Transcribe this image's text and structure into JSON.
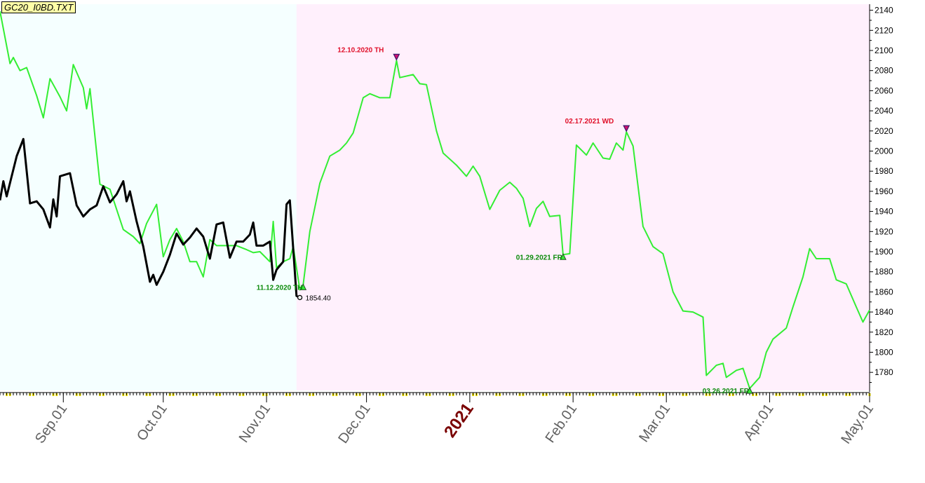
{
  "file_label": "GC20_I0BD.TXT",
  "colors": {
    "history_bg": "#f5ffff",
    "forecast_bg": "#fff0fc",
    "green_line": "#33ee33",
    "black_line": "#000000",
    "top_label": "#e0102a",
    "bottom_label": "#0a8a0a",
    "year_label": "#7a0000",
    "month_label": "#606060",
    "tick_yellow": "#ffee00"
  },
  "chart_data": {
    "type": "line",
    "x_axis": {
      "month_labels": [
        "Sep.01",
        "Oct.01",
        "Nov.01",
        "Dec.01",
        "2021",
        "Feb.01",
        "Mar.01",
        "Apr.01",
        "May.01"
      ],
      "month_dates": [
        "2020-09-01",
        "2020-10-01",
        "2020-11-01",
        "2020-12-01",
        "2021-01-01",
        "2021-02-01",
        "2021-03-01",
        "2021-04-01",
        "2021-05-01"
      ],
      "xlim": [
        "2020-08-13",
        "2021-05-01"
      ]
    },
    "y_axis": {
      "ticks": [
        2140,
        2120,
        2100,
        2080,
        2060,
        2040,
        2020,
        2000,
        1980,
        1960,
        1940,
        1920,
        1900,
        1880,
        1860,
        1840,
        1820,
        1800,
        1780
      ],
      "ylim": [
        1762,
        2146
      ],
      "position": "right"
    },
    "forecast_start": "2020-11-10",
    "series": [
      {
        "color": "green",
        "points": [
          [
            "2020-08-13",
            2139
          ],
          [
            "2020-08-16",
            2087
          ],
          [
            "2020-08-17",
            2093
          ],
          [
            "2020-08-19",
            2080
          ],
          [
            "2020-08-21",
            2083
          ],
          [
            "2020-08-24",
            2055
          ],
          [
            "2020-08-26",
            2033
          ],
          [
            "2020-08-28",
            2072
          ],
          [
            "2020-08-31",
            2054
          ],
          [
            "2020-09-02",
            2040
          ],
          [
            "2020-09-04",
            2086
          ],
          [
            "2020-09-07",
            2063
          ],
          [
            "2020-09-08",
            2042
          ],
          [
            "2020-09-09",
            2062
          ],
          [
            "2020-09-12",
            1967
          ],
          [
            "2020-09-15",
            1962
          ],
          [
            "2020-09-19",
            1922
          ],
          [
            "2020-09-22",
            1915
          ],
          [
            "2020-09-24",
            1908
          ],
          [
            "2020-09-26",
            1928
          ],
          [
            "2020-09-29",
            1947
          ],
          [
            "2020-10-01",
            1895
          ],
          [
            "2020-10-03",
            1912
          ],
          [
            "2020-10-05",
            1923
          ],
          [
            "2020-10-07",
            1910
          ],
          [
            "2020-10-09",
            1890
          ],
          [
            "2020-10-11",
            1890
          ],
          [
            "2020-10-13",
            1875
          ],
          [
            "2020-10-15",
            1912
          ],
          [
            "2020-10-17",
            1906
          ],
          [
            "2020-10-20",
            1906
          ],
          [
            "2020-10-23",
            1906
          ],
          [
            "2020-10-26",
            1902
          ],
          [
            "2020-10-28",
            1899
          ],
          [
            "2020-10-30",
            1900
          ],
          [
            "2020-11-02",
            1890
          ],
          [
            "2020-11-03",
            1930
          ],
          [
            "2020-11-04",
            1884
          ],
          [
            "2020-11-06",
            1890
          ],
          [
            "2020-11-08",
            1893
          ],
          [
            "2020-11-09",
            1905
          ],
          [
            "2020-11-11",
            1862
          ],
          [
            "2020-11-12",
            1867
          ],
          [
            "2020-11-14",
            1920
          ],
          [
            "2020-11-17",
            1968
          ],
          [
            "2020-11-20",
            1995
          ],
          [
            "2020-11-23",
            2001
          ],
          [
            "2020-11-25",
            2008
          ],
          [
            "2020-11-27",
            2018
          ],
          [
            "2020-11-30",
            2053
          ],
          [
            "2020-12-02",
            2057
          ],
          [
            "2020-12-05",
            2053
          ],
          [
            "2020-12-08",
            2053
          ],
          [
            "2020-12-10",
            2090
          ],
          [
            "2020-12-11",
            2073
          ],
          [
            "2020-12-15",
            2076
          ],
          [
            "2020-12-17",
            2067
          ],
          [
            "2020-12-19",
            2066
          ],
          [
            "2020-12-22",
            2020
          ],
          [
            "2020-12-24",
            1998
          ],
          [
            "2020-12-28",
            1986
          ],
          [
            "2020-12-31",
            1975
          ],
          [
            "2021-01-02",
            1985
          ],
          [
            "2021-01-04",
            1975
          ],
          [
            "2021-01-07",
            1942
          ],
          [
            "2021-01-10",
            1961
          ],
          [
            "2021-01-13",
            1969
          ],
          [
            "2021-01-15",
            1963
          ],
          [
            "2021-01-17",
            1953
          ],
          [
            "2021-01-19",
            1925
          ],
          [
            "2021-01-21",
            1943
          ],
          [
            "2021-01-23",
            1950
          ],
          [
            "2021-01-25",
            1935
          ],
          [
            "2021-01-28",
            1936
          ],
          [
            "2021-01-29",
            1897
          ],
          [
            "2021-01-31",
            1898
          ],
          [
            "2021-02-02",
            2006
          ],
          [
            "2021-02-05",
            1996
          ],
          [
            "2021-02-07",
            2008
          ],
          [
            "2021-02-10",
            1993
          ],
          [
            "2021-02-12",
            1992
          ],
          [
            "2021-02-14",
            2008
          ],
          [
            "2021-02-16",
            2001
          ],
          [
            "2021-02-17",
            2019
          ],
          [
            "2021-02-19",
            2005
          ],
          [
            "2021-02-22",
            1925
          ],
          [
            "2021-02-25",
            1905
          ],
          [
            "2021-02-28",
            1898
          ],
          [
            "2021-03-03",
            1860
          ],
          [
            "2021-03-06",
            1841
          ],
          [
            "2021-03-09",
            1840
          ],
          [
            "2021-03-12",
            1835
          ],
          [
            "2021-03-13",
            1777
          ],
          [
            "2021-03-16",
            1787
          ],
          [
            "2021-03-18",
            1789
          ],
          [
            "2021-03-19",
            1775
          ],
          [
            "2021-03-22",
            1782
          ],
          [
            "2021-03-24",
            1784
          ],
          [
            "2021-03-26",
            1764
          ],
          [
            "2021-03-29",
            1775
          ],
          [
            "2021-03-31",
            1800
          ],
          [
            "2021-04-02",
            1813
          ],
          [
            "2021-04-06",
            1824
          ],
          [
            "2021-04-08",
            1845
          ],
          [
            "2021-04-11",
            1875
          ],
          [
            "2021-04-13",
            1903
          ],
          [
            "2021-04-15",
            1893
          ],
          [
            "2021-04-19",
            1893
          ],
          [
            "2021-04-21",
            1872
          ],
          [
            "2021-04-24",
            1868
          ],
          [
            "2021-04-27",
            1845
          ],
          [
            "2021-04-29",
            1830
          ],
          [
            "2021-05-01",
            1842
          ]
        ]
      },
      {
        "color": "black",
        "points": [
          [
            "2020-08-13",
            1951
          ],
          [
            "2020-08-14",
            1970
          ],
          [
            "2020-08-15",
            1955
          ],
          [
            "2020-08-18",
            1995
          ],
          [
            "2020-08-20",
            2012
          ],
          [
            "2020-08-22",
            1948
          ],
          [
            "2020-08-24",
            1950
          ],
          [
            "2020-08-26",
            1942
          ],
          [
            "2020-08-28",
            1924
          ],
          [
            "2020-08-29",
            1952
          ],
          [
            "2020-08-30",
            1935
          ],
          [
            "2020-08-31",
            1975
          ],
          [
            "2020-09-03",
            1978
          ],
          [
            "2020-09-05",
            1946
          ],
          [
            "2020-09-07",
            1935
          ],
          [
            "2020-09-09",
            1942
          ],
          [
            "2020-09-11",
            1946
          ],
          [
            "2020-09-13",
            1965
          ],
          [
            "2020-09-15",
            1949
          ],
          [
            "2020-09-17",
            1957
          ],
          [
            "2020-09-19",
            1970
          ],
          [
            "2020-09-20",
            1950
          ],
          [
            "2020-09-21",
            1960
          ],
          [
            "2020-09-23",
            1930
          ],
          [
            "2020-09-25",
            1905
          ],
          [
            "2020-09-27",
            1870
          ],
          [
            "2020-09-28",
            1877
          ],
          [
            "2020-09-29",
            1867
          ],
          [
            "2020-10-01",
            1880
          ],
          [
            "2020-10-03",
            1897
          ],
          [
            "2020-10-05",
            1918
          ],
          [
            "2020-10-07",
            1907
          ],
          [
            "2020-10-09",
            1914
          ],
          [
            "2020-10-11",
            1923
          ],
          [
            "2020-10-13",
            1915
          ],
          [
            "2020-10-15",
            1893
          ],
          [
            "2020-10-17",
            1927
          ],
          [
            "2020-10-19",
            1929
          ],
          [
            "2020-10-21",
            1894
          ],
          [
            "2020-10-23",
            1910
          ],
          [
            "2020-10-25",
            1910
          ],
          [
            "2020-10-27",
            1917
          ],
          [
            "2020-10-28",
            1929
          ],
          [
            "2020-10-29",
            1906
          ],
          [
            "2020-10-31",
            1906
          ],
          [
            "2020-11-02",
            1910
          ],
          [
            "2020-11-03",
            1872
          ],
          [
            "2020-11-04",
            1882
          ],
          [
            "2020-11-06",
            1890
          ],
          [
            "2020-11-07",
            1947
          ],
          [
            "2020-11-08",
            1951
          ],
          [
            "2020-11-10",
            1856
          ],
          [
            "2020-11-11",
            1854.4
          ]
        ]
      }
    ],
    "annotations": [
      {
        "kind": "top",
        "date": "2020-12-10",
        "price": 2090,
        "text": "12.10.2020 TH"
      },
      {
        "kind": "top",
        "date": "2021-02-17",
        "price": 2019,
        "text": "02.17.2021 WD"
      },
      {
        "kind": "bottom",
        "date": "2020-11-12",
        "price": 1867,
        "text": "11.12.2020 TH"
      },
      {
        "kind": "bottom",
        "date": "2021-01-29",
        "price": 1897,
        "text": "01.29.2021 FR"
      },
      {
        "kind": "bottom",
        "date": "2021-03-26",
        "price": 1764,
        "text": "03.26.2021 FR"
      },
      {
        "kind": "last",
        "date": "2020-11-11",
        "price": 1854.4,
        "text": "1854.40"
      }
    ]
  }
}
